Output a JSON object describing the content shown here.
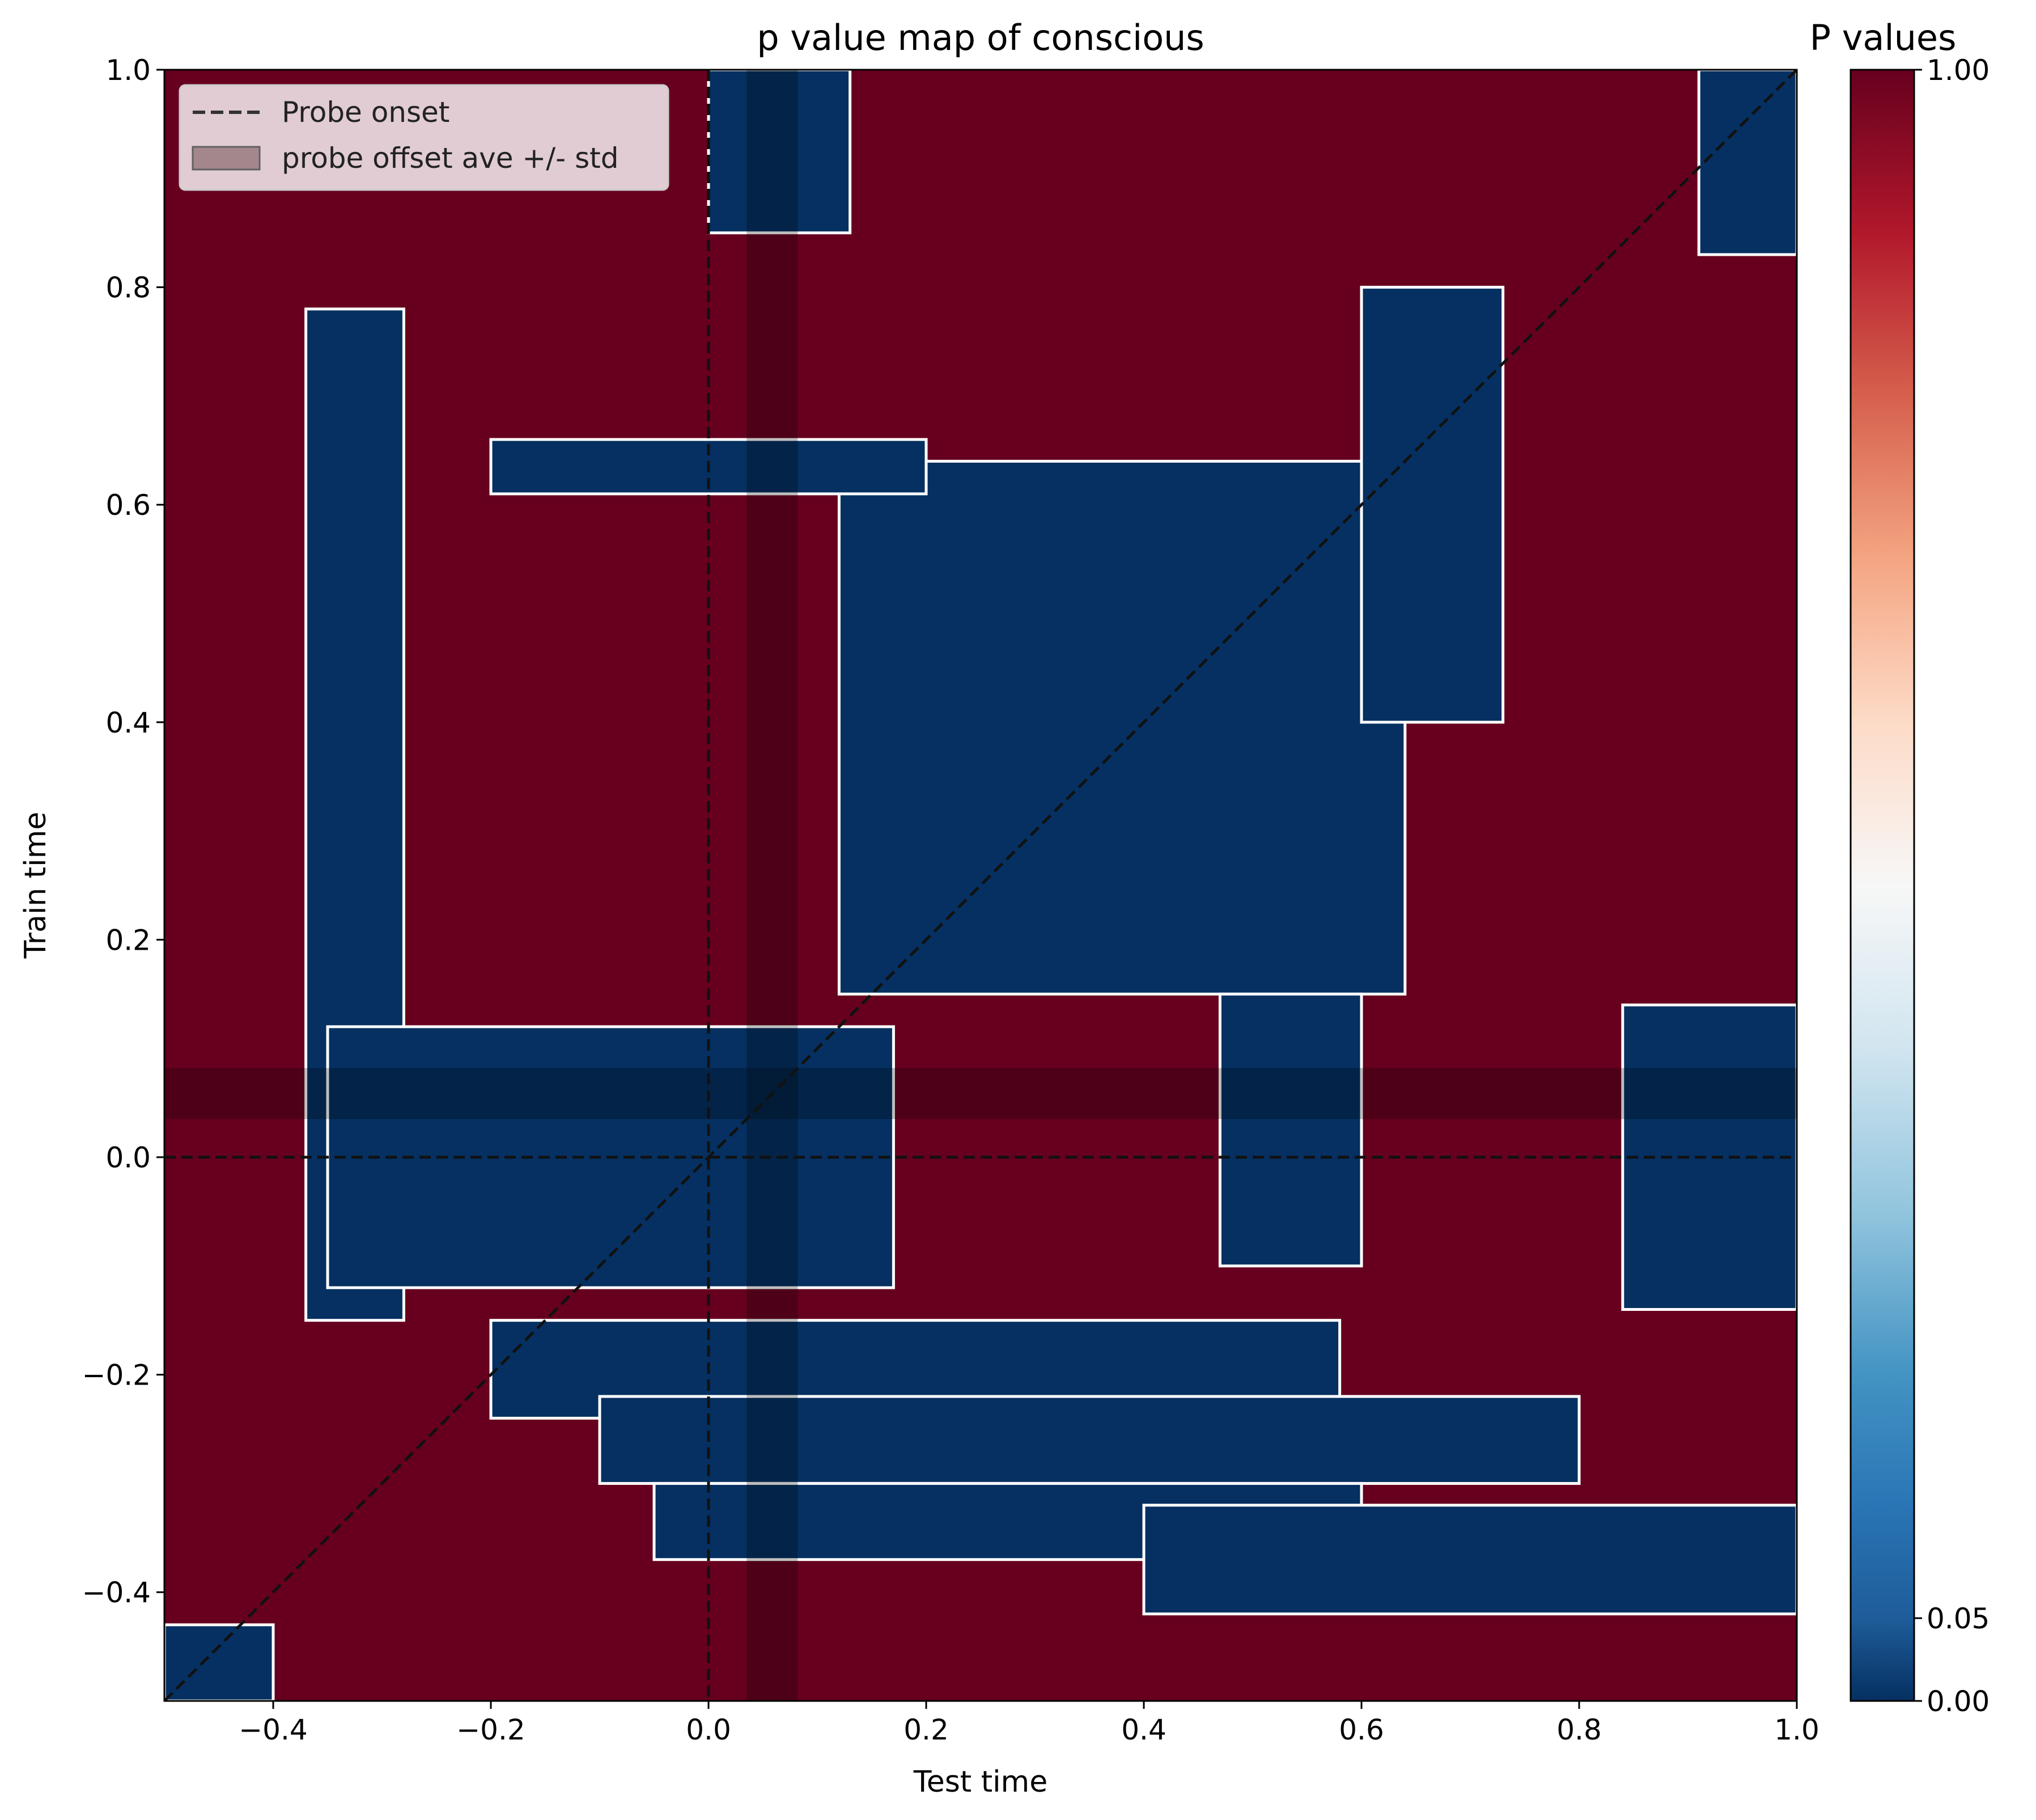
{
  "chart_data": {
    "type": "heatmap",
    "title": "p value map of conscious",
    "xlabel": "Test time",
    "ylabel": "Train time",
    "xlim": [
      -0.5,
      1.0
    ],
    "ylim": [
      -0.5,
      1.0
    ],
    "xticks": [
      "−0.4",
      "−0.2",
      "0.0",
      "0.2",
      "0.4",
      "0.6",
      "0.8",
      "1.0"
    ],
    "xtick_values": [
      -0.4,
      -0.2,
      0.0,
      0.2,
      0.4,
      0.6,
      0.8,
      1.0
    ],
    "yticks": [
      "−0.4",
      "−0.2",
      "0.0",
      "0.2",
      "0.4",
      "0.6",
      "0.8",
      "1.0"
    ],
    "ytick_values": [
      -0.4,
      -0.2,
      0.0,
      0.2,
      0.4,
      0.6,
      0.8,
      1.0
    ],
    "grid": false,
    "colormap": "RdBu_r",
    "background_value": 1.0,
    "colors": {
      "high": "#67001f",
      "low": "#053061",
      "contour": "#ffffff",
      "dashed_line": "#111111",
      "band": "#000000"
    },
    "significant_regions": [
      {
        "x": [
          -0.37,
          -0.28
        ],
        "y": [
          -0.15,
          0.78
        ],
        "p": 0.0
      },
      {
        "x": [
          -0.35,
          0.17
        ],
        "y": [
          -0.12,
          0.12
        ],
        "p": 0.0
      },
      {
        "x": [
          -0.2,
          0.58
        ],
        "y": [
          -0.24,
          -0.15
        ],
        "p": 0.0
      },
      {
        "x": [
          -0.1,
          0.8
        ],
        "y": [
          -0.3,
          -0.22
        ],
        "p": 0.0
      },
      {
        "x": [
          -0.05,
          0.6
        ],
        "y": [
          -0.37,
          -0.3
        ],
        "p": 0.0
      },
      {
        "x": [
          0.4,
          1.0
        ],
        "y": [
          -0.42,
          -0.32
        ],
        "p": 0.0
      },
      {
        "x": [
          0.12,
          0.64
        ],
        "y": [
          0.15,
          0.64
        ],
        "p": 0.0
      },
      {
        "x": [
          0.6,
          0.73
        ],
        "y": [
          0.4,
          0.8
        ],
        "p": 0.0
      },
      {
        "x": [
          -0.2,
          0.2
        ],
        "y": [
          0.61,
          0.66
        ],
        "p": 0.0
      },
      {
        "x": [
          0.47,
          0.6
        ],
        "y": [
          -0.1,
          0.15
        ],
        "p": 0.0
      },
      {
        "x": [
          0.84,
          1.0
        ],
        "y": [
          -0.14,
          0.14
        ],
        "p": 0.0
      },
      {
        "x": [
          0.0,
          0.13
        ],
        "y": [
          0.85,
          1.0
        ],
        "p": 0.0
      },
      {
        "x": [
          0.91,
          1.0
        ],
        "y": [
          0.83,
          1.0
        ],
        "p": 0.0
      },
      {
        "x": [
          -0.5,
          -0.4
        ],
        "y": [
          -0.5,
          -0.43
        ],
        "p": 0.0
      }
    ],
    "lines": [
      {
        "name": "Probe onset",
        "style": "dashed",
        "orientation": "vertical",
        "value": 0.0
      },
      {
        "style": "dashed",
        "orientation": "horizontal",
        "value": 0.0
      },
      {
        "style": "dashed",
        "orientation": "diagonal",
        "from": [
          -0.5,
          -0.5
        ],
        "to": [
          1.0,
          1.0
        ]
      }
    ],
    "bands": [
      {
        "name": "probe offset ave +/- std",
        "orientation": "vertical",
        "range": [
          0.035,
          0.082
        ]
      },
      {
        "orientation": "horizontal",
        "range": [
          0.035,
          0.082
        ]
      }
    ],
    "legend": {
      "placement": "top-left",
      "entries": [
        "Probe onset",
        "probe offset ave +/- std"
      ]
    },
    "colorbar": {
      "title": "P values",
      "ticks": [
        "0.00",
        "0.05",
        "1.00"
      ],
      "tick_values": [
        0.0,
        0.05,
        1.0
      ]
    }
  }
}
